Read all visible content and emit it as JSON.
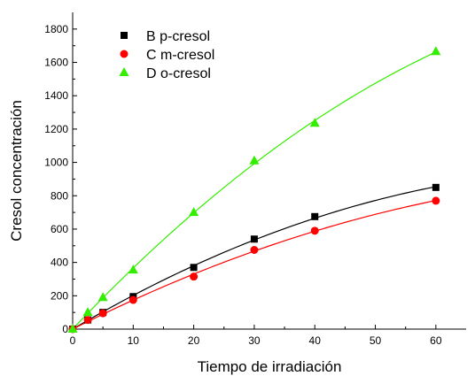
{
  "chart_data": {
    "type": "scatter",
    "xlabel": "Tiempo de irradiación",
    "ylabel": "Cresol concentración",
    "xlim": [
      0,
      65
    ],
    "ylim": [
      0,
      1900
    ],
    "x_ticks": [
      0,
      10,
      20,
      30,
      40,
      50,
      60
    ],
    "y_ticks": [
      0,
      200,
      400,
      600,
      800,
      1000,
      1200,
      1400,
      1600,
      1800
    ],
    "grid": false,
    "legend_position": "top-left",
    "series": [
      {
        "name": "B p-cresol",
        "marker": "square",
        "color": "#000000",
        "x": [
          0,
          2.5,
          5,
          10,
          20,
          30,
          40,
          60
        ],
        "y": [
          0,
          55,
          100,
          195,
          370,
          540,
          675,
          850
        ],
        "fit_line_color": "#000000"
      },
      {
        "name": "C m-cresol",
        "marker": "circle",
        "color": "#ff0000",
        "x": [
          0,
          2.5,
          5,
          10,
          20,
          30,
          40,
          60
        ],
        "y": [
          0,
          55,
          95,
          175,
          315,
          475,
          590,
          770
        ],
        "fit_line_color": "#ff0000"
      },
      {
        "name": "D o-cresol",
        "marker": "triangle",
        "color": "#33ee00",
        "x": [
          0,
          2.5,
          5,
          10,
          20,
          30,
          40,
          60
        ],
        "y": [
          0,
          100,
          190,
          355,
          700,
          1010,
          1235,
          1665
        ],
        "fit_line_color": "#33ee00"
      }
    ]
  }
}
